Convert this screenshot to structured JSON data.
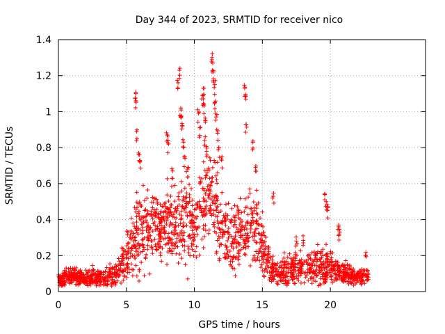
{
  "chart_data": {
    "type": "scatter",
    "title": "Day 344 of 2023, SRMTID for receiver nico",
    "xlabel": "GPS time / hours",
    "ylabel": "SRMTID / TECUs",
    "xlim": [
      0,
      27
    ],
    "ylim": [
      0,
      1.4
    ],
    "x_ticks": [
      0,
      5,
      10,
      15,
      20
    ],
    "x_tick_labels": [
      "0",
      "5",
      "10",
      "15",
      "20"
    ],
    "y_ticks": [
      0,
      0.2,
      0.4,
      0.6,
      0.8,
      1.0,
      1.2,
      1.4
    ],
    "y_tick_labels": [
      "0",
      "0.2",
      "0.4",
      "0.6",
      "0.8",
      "1",
      "1.2",
      "1.4"
    ],
    "grid": true,
    "marker": "+",
    "series_color": "#ff0000",
    "envelope": {
      "description": "Approximate median level and spread of the dense point cloud, hours vs TECU",
      "x": [
        0,
        1,
        2,
        3,
        3.5,
        4,
        4.5,
        5,
        5.5,
        6,
        7,
        8,
        8.5,
        9,
        9.5,
        10,
        10.5,
        11,
        11.5,
        12,
        12.5,
        13,
        13.5,
        14,
        14.5,
        15,
        15.5,
        16,
        17,
        18,
        19,
        20,
        21,
        22,
        22.8
      ],
      "median": [
        0.07,
        0.08,
        0.08,
        0.07,
        0.07,
        0.09,
        0.12,
        0.18,
        0.3,
        0.35,
        0.36,
        0.35,
        0.4,
        0.4,
        0.38,
        0.36,
        0.45,
        0.55,
        0.5,
        0.35,
        0.3,
        0.3,
        0.32,
        0.33,
        0.35,
        0.25,
        0.15,
        0.1,
        0.12,
        0.13,
        0.14,
        0.14,
        0.1,
        0.08,
        0.08
      ],
      "spread": [
        0.03,
        0.03,
        0.03,
        0.03,
        0.03,
        0.04,
        0.05,
        0.08,
        0.12,
        0.15,
        0.12,
        0.13,
        0.14,
        0.15,
        0.15,
        0.13,
        0.15,
        0.15,
        0.14,
        0.12,
        0.11,
        0.11,
        0.11,
        0.12,
        0.12,
        0.1,
        0.06,
        0.04,
        0.05,
        0.05,
        0.06,
        0.06,
        0.04,
        0.03,
        0.03
      ]
    },
    "peaks": [
      {
        "x": 5.7,
        "y": 1.1
      },
      {
        "x": 5.7,
        "y": 1.06
      },
      {
        "x": 5.75,
        "y": 0.89
      },
      {
        "x": 5.9,
        "y": 0.77
      },
      {
        "x": 6.0,
        "y": 0.72
      },
      {
        "x": 8.0,
        "y": 0.87
      },
      {
        "x": 8.1,
        "y": 0.82
      },
      {
        "x": 8.4,
        "y": 0.67
      },
      {
        "x": 8.8,
        "y": 1.16
      },
      {
        "x": 8.9,
        "y": 1.23
      },
      {
        "x": 9.0,
        "y": 1.02
      },
      {
        "x": 9.0,
        "y": 0.97
      },
      {
        "x": 9.1,
        "y": 0.92
      },
      {
        "x": 9.2,
        "y": 0.83
      },
      {
        "x": 9.3,
        "y": 0.75
      },
      {
        "x": 9.5,
        "y": 0.68
      },
      {
        "x": 10.3,
        "y": 0.99
      },
      {
        "x": 10.4,
        "y": 0.91
      },
      {
        "x": 10.6,
        "y": 1.09
      },
      {
        "x": 10.7,
        "y": 1.13
      },
      {
        "x": 10.7,
        "y": 1.04
      },
      {
        "x": 10.8,
        "y": 0.95
      },
      {
        "x": 10.8,
        "y": 0.86
      },
      {
        "x": 10.9,
        "y": 0.78
      },
      {
        "x": 11.3,
        "y": 1.3
      },
      {
        "x": 11.35,
        "y": 1.27
      },
      {
        "x": 11.4,
        "y": 1.22
      },
      {
        "x": 11.5,
        "y": 1.15
      },
      {
        "x": 11.5,
        "y": 1.05
      },
      {
        "x": 11.6,
        "y": 0.97
      },
      {
        "x": 11.7,
        "y": 0.88
      },
      {
        "x": 11.8,
        "y": 0.8
      },
      {
        "x": 12.0,
        "y": 0.73
      },
      {
        "x": 13.7,
        "y": 1.13
      },
      {
        "x": 13.75,
        "y": 1.09
      },
      {
        "x": 13.8,
        "y": 0.93
      },
      {
        "x": 14.3,
        "y": 0.83
      },
      {
        "x": 14.5,
        "y": 0.69
      },
      {
        "x": 15.8,
        "y": 0.53
      },
      {
        "x": 17.5,
        "y": 0.28
      },
      {
        "x": 18.0,
        "y": 0.31
      },
      {
        "x": 19.6,
        "y": 0.54
      },
      {
        "x": 19.7,
        "y": 0.5
      },
      {
        "x": 19.8,
        "y": 0.45
      },
      {
        "x": 20.6,
        "y": 0.36
      },
      {
        "x": 20.7,
        "y": 0.33
      },
      {
        "x": 22.6,
        "y": 0.2
      }
    ]
  }
}
